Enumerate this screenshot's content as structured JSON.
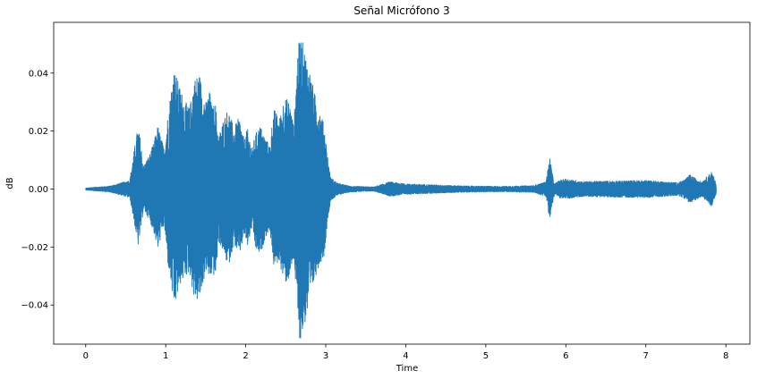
{
  "chart_data": {
    "type": "line",
    "title": "Señal Micrófono 3",
    "xlabel": "Time",
    "ylabel": "dB",
    "xlim": [
      -0.4,
      8.3
    ],
    "ylim": [
      -0.0535,
      0.0575
    ],
    "xticks": [
      0,
      1,
      2,
      3,
      4,
      5,
      6,
      7,
      8
    ],
    "xtick_labels": [
      "0",
      "1",
      "2",
      "3",
      "4",
      "5",
      "6",
      "7",
      "8"
    ],
    "yticks": [
      -0.04,
      -0.02,
      0.0,
      0.02,
      0.04
    ],
    "ytick_labels": [
      "−0.04",
      "−0.02",
      "0.00",
      "0.02",
      "0.04"
    ],
    "grid": false,
    "legend": "none",
    "series": [
      {
        "color": "#1f77b4",
        "x_start": 0.0,
        "x_end": 7.88,
        "envelope": {
          "x": [
            0.0,
            0.1,
            0.3,
            0.55,
            0.62,
            0.65,
            0.68,
            0.72,
            0.8,
            0.85,
            0.9,
            0.98,
            1.02,
            1.06,
            1.1,
            1.18,
            1.25,
            1.3,
            1.35,
            1.42,
            1.5,
            1.55,
            1.58,
            1.62,
            1.66,
            1.72,
            1.78,
            1.85,
            1.92,
            1.98,
            2.02,
            2.08,
            2.12,
            2.18,
            2.24,
            2.3,
            2.35,
            2.42,
            2.48,
            2.55,
            2.6,
            2.65,
            2.68,
            2.72,
            2.76,
            2.8,
            2.86,
            2.92,
            2.98,
            3.02,
            3.06,
            3.15,
            3.3,
            3.6,
            3.8,
            4.0,
            4.3,
            4.7,
            5.2,
            5.6,
            5.75,
            5.8,
            5.84,
            5.86,
            5.92,
            6.0,
            6.2,
            6.6,
            7.0,
            7.4,
            7.5,
            7.55,
            7.6,
            7.7,
            7.82,
            7.85,
            7.88
          ],
          "upper": [
            0.0003,
            0.0006,
            0.001,
            0.003,
            0.016,
            0.021,
            0.018,
            0.008,
            0.012,
            0.016,
            0.022,
            0.014,
            0.024,
            0.033,
            0.042,
            0.035,
            0.03,
            0.028,
            0.038,
            0.04,
            0.03,
            0.034,
            0.028,
            0.03,
            0.018,
            0.024,
            0.028,
            0.021,
            0.025,
            0.017,
            0.021,
            0.014,
            0.019,
            0.022,
            0.018,
            0.015,
            0.028,
            0.024,
            0.032,
            0.03,
            0.022,
            0.048,
            0.053,
            0.05,
            0.045,
            0.041,
            0.033,
            0.028,
            0.022,
            0.012,
            0.004,
            0.002,
            0.001,
            0.0007,
            0.0025,
            0.0018,
            0.0015,
            0.0011,
            0.0009,
            0.0012,
            0.0025,
            0.011,
            0.004,
            0.0018,
            0.003,
            0.0035,
            0.0026,
            0.0028,
            0.003,
            0.0022,
            0.0035,
            0.005,
            0.004,
            0.0025,
            0.006,
            0.004,
            0.0015
          ],
          "lower": [
            -0.0003,
            -0.0006,
            -0.001,
            -0.003,
            -0.014,
            -0.02,
            -0.016,
            -0.007,
            -0.011,
            -0.015,
            -0.021,
            -0.012,
            -0.025,
            -0.032,
            -0.042,
            -0.033,
            -0.03,
            -0.029,
            -0.038,
            -0.039,
            -0.028,
            -0.032,
            -0.029,
            -0.031,
            -0.018,
            -0.022,
            -0.027,
            -0.019,
            -0.023,
            -0.016,
            -0.02,
            -0.013,
            -0.021,
            -0.023,
            -0.017,
            -0.014,
            -0.027,
            -0.025,
            -0.033,
            -0.031,
            -0.024,
            -0.046,
            -0.053,
            -0.049,
            -0.044,
            -0.04,
            -0.031,
            -0.026,
            -0.023,
            -0.011,
            -0.004,
            -0.002,
            -0.001,
            -0.0007,
            -0.0025,
            -0.0018,
            -0.0015,
            -0.0011,
            -0.0009,
            -0.0012,
            -0.0025,
            -0.011,
            -0.004,
            -0.0018,
            -0.003,
            -0.0035,
            -0.0026,
            -0.0028,
            -0.003,
            -0.0022,
            -0.0035,
            -0.005,
            -0.004,
            -0.0025,
            -0.006,
            -0.004,
            -0.0015
          ]
        }
      }
    ]
  }
}
